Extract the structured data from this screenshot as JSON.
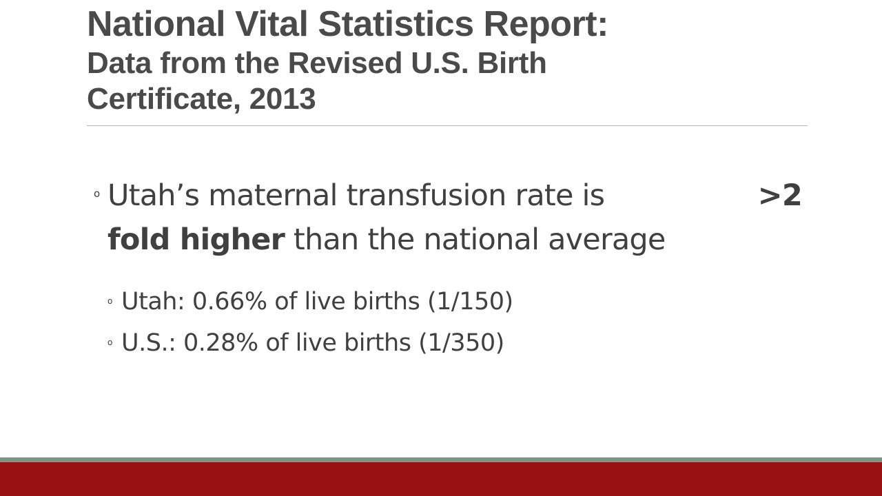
{
  "slide": {
    "title_main": "National Vital Statistics Report:",
    "title_sub": "Data from the Revised U.S. Birth Certificate, 2013",
    "bullet_marker": "o",
    "main_bullet": {
      "line1_text": "Utah’s maternal transfusion rate is",
      "line1_emphasis": ">2",
      "line2_emphasis": "fold higher",
      "line2_text": " than the national average"
    },
    "sub_bullets": [
      "Utah: 0.66% of live births (1/150)",
      "U.S.: 0.28% of live births (1/350)"
    ]
  },
  "colors": {
    "title": "#4a4a4a",
    "body_text": "#404040",
    "footer_bar": "#981214",
    "footer_accent": "#7f9484"
  }
}
